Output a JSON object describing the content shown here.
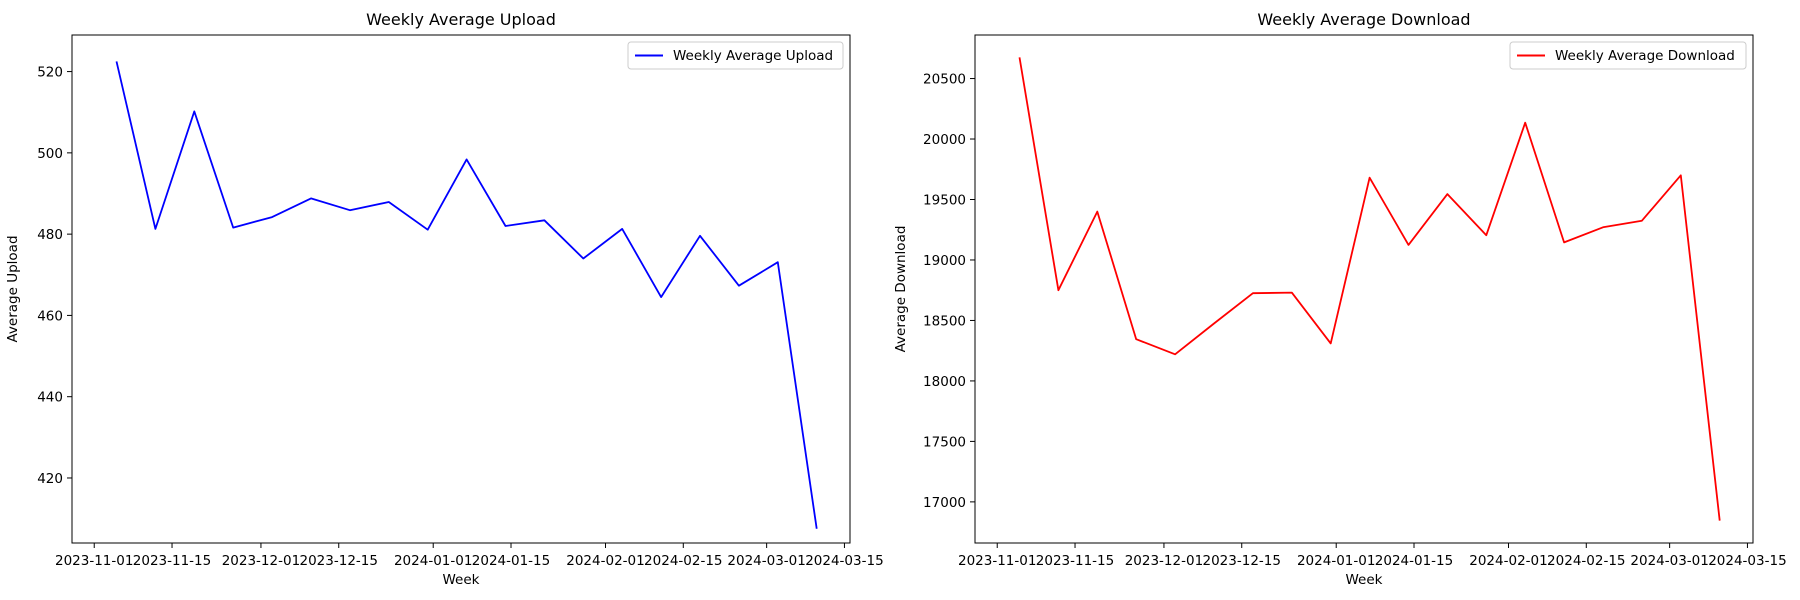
{
  "chart_data": [
    {
      "type": "line",
      "title": "Weekly Average Upload",
      "xlabel": "Week",
      "ylabel": "Average Upload",
      "x_ticks": [
        "2023-11-01",
        "2023-11-15",
        "2023-12-01",
        "2023-12-15",
        "2024-01-01",
        "2024-01-15",
        "2024-02-01",
        "2024-02-15",
        "2024-03-01",
        "2024-03-15"
      ],
      "y_ticks": [
        420,
        440,
        460,
        480,
        500,
        520
      ],
      "xlim": [
        "2023-10-28",
        "2024-03-16"
      ],
      "ylim": [
        404,
        529
      ],
      "legend_position": "top-right",
      "color": "#0000ff",
      "series": [
        {
          "name": "Weekly Average Upload",
          "x": [
            "2023-11-05",
            "2023-11-12",
            "2023-11-19",
            "2023-11-26",
            "2023-12-03",
            "2023-12-10",
            "2023-12-17",
            "2023-12-24",
            "2023-12-31",
            "2024-01-07",
            "2024-01-14",
            "2024-01-21",
            "2024-01-28",
            "2024-02-04",
            "2024-02-11",
            "2024-02-18",
            "2024-02-25",
            "2024-03-03",
            "2024-03-10"
          ],
          "values": [
            522.5,
            481.3,
            510.2,
            481.6,
            484.2,
            488.8,
            485.9,
            487.9,
            481.1,
            498.4,
            482.0,
            483.4,
            474.0,
            481.3,
            464.5,
            479.6,
            467.3,
            473.1,
            407.5
          ]
        }
      ]
    },
    {
      "type": "line",
      "title": "Weekly Average Download",
      "xlabel": "Week",
      "ylabel": "Average Download",
      "x_ticks": [
        "2023-11-01",
        "2023-11-15",
        "2023-12-01",
        "2023-12-15",
        "2024-01-01",
        "2024-01-15",
        "2024-02-01",
        "2024-02-15",
        "2024-03-01",
        "2024-03-15"
      ],
      "y_ticks": [
        17000,
        17500,
        18000,
        18500,
        19000,
        19500,
        20000,
        20500
      ],
      "xlim": [
        "2023-10-28",
        "2024-03-16"
      ],
      "ylim": [
        16660,
        20860
      ],
      "legend_position": "top-right",
      "color": "#ff0000",
      "series": [
        {
          "name": "Weekly Average Download",
          "x": [
            "2023-11-05",
            "2023-11-12",
            "2023-11-19",
            "2023-11-26",
            "2023-12-03",
            "2023-12-10",
            "2023-12-17",
            "2023-12-24",
            "2023-12-31",
            "2024-01-07",
            "2024-01-14",
            "2024-01-21",
            "2024-01-28",
            "2024-02-04",
            "2024-02-11",
            "2024-02-18",
            "2024-02-25",
            "2024-03-03",
            "2024-03-10"
          ],
          "values": [
            20675,
            18750,
            19400,
            18345,
            18220,
            18475,
            18725,
            18730,
            18310,
            19680,
            19125,
            19545,
            19205,
            20135,
            19145,
            19270,
            19325,
            19700,
            16845
          ]
        }
      ]
    }
  ]
}
